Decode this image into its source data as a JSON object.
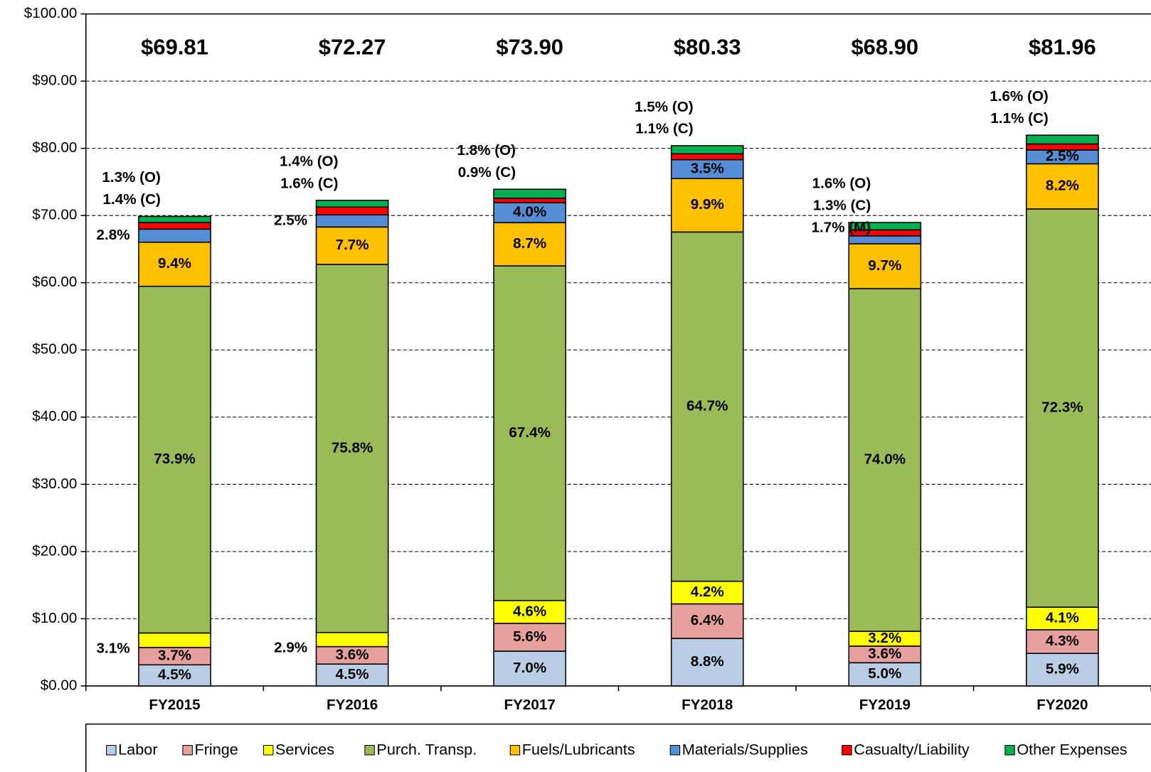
{
  "chart_data": {
    "type": "stacked_bar",
    "categories": [
      "FY2015",
      "FY2016",
      "FY2017",
      "FY2018",
      "FY2019",
      "FY2020"
    ],
    "totals": [
      69.81,
      72.27,
      73.9,
      80.33,
      68.9,
      81.96
    ],
    "total_labels": [
      "$69.81",
      "$72.27",
      "$73.90",
      "$80.33",
      "$68.90",
      "$81.96"
    ],
    "series": [
      {
        "name": "Labor",
        "color": "#b9cde5",
        "values": [
          3.14,
          3.25,
          5.17,
          7.07,
          3.45,
          4.84
        ],
        "share_labels": [
          "4.5%",
          "4.5%",
          "7.0%",
          "8.8%",
          "5.0%",
          "5.9%"
        ]
      },
      {
        "name": "Fringe",
        "color": "#e6a09e",
        "values": [
          2.58,
          2.6,
          4.14,
          5.14,
          2.48,
          3.52
        ],
        "share_labels": [
          "3.7%",
          "3.6%",
          "5.6%",
          "6.4%",
          "3.6%",
          "4.3%"
        ]
      },
      {
        "name": "Services",
        "color": "#ffff00",
        "values": [
          2.16,
          2.1,
          3.4,
          3.37,
          2.2,
          3.36
        ],
        "share_labels": [
          "3.1%",
          "2.9%",
          "4.6%",
          "4.2%",
          "3.2%",
          "4.1%"
        ]
      },
      {
        "name": "Purch. Transp.",
        "color": "#9bbb59",
        "values": [
          51.59,
          54.78,
          49.81,
          51.97,
          50.99,
          59.26
        ],
        "share_labels": [
          "73.9%",
          "75.8%",
          "67.4%",
          "64.7%",
          "74.0%",
          "72.3%"
        ]
      },
      {
        "name": "Fuels/Lubricants",
        "color": "#ffc000",
        "values": [
          6.56,
          5.56,
          6.43,
          7.95,
          6.68,
          6.72
        ],
        "share_labels": [
          "9.4%",
          "7.7%",
          "8.7%",
          "9.9%",
          "9.7%",
          "8.2%"
        ]
      },
      {
        "name": "Materials/Supplies",
        "color": "#558ed5",
        "values": [
          1.95,
          1.81,
          2.96,
          2.81,
          1.17,
          2.05
        ],
        "share_labels": [
          "2.8%",
          "2.5%",
          "4.0%",
          "3.5%",
          "1.7% (M)",
          "2.5%"
        ]
      },
      {
        "name": "Casualty/Liability",
        "color": "#ff0000",
        "values": [
          0.98,
          1.16,
          0.67,
          0.88,
          0.9,
          0.9
        ],
        "share_labels": [
          "1.4% (C)",
          "1.6% (C)",
          "0.9% (C)",
          "1.1% (C)",
          "1.3% (C)",
          "1.1% (C)"
        ]
      },
      {
        "name": "Other Expenses",
        "color": "#00b050",
        "values": [
          0.91,
          1.01,
          1.33,
          1.2,
          1.1,
          1.31
        ],
        "share_labels": [
          "1.3% (O)",
          "1.4% (O)",
          "1.8% (O)",
          "1.5% (O)",
          "1.6% (O)",
          "1.6% (O)"
        ]
      }
    ],
    "ylim": [
      0,
      100
    ],
    "yticks": [
      {
        "value": 0,
        "label": "$0.00"
      },
      {
        "value": 10,
        "label": "$10.00"
      },
      {
        "value": 20,
        "label": "$20.00"
      },
      {
        "value": 30,
        "label": "$30.00"
      },
      {
        "value": 40,
        "label": "$40.00"
      },
      {
        "value": 50,
        "label": "$50.00"
      },
      {
        "value": 60,
        "label": "$60.00"
      },
      {
        "value": 70,
        "label": "$70.00"
      },
      {
        "value": 80,
        "label": "$80.00"
      },
      {
        "value": 90,
        "label": "$90.00"
      },
      {
        "value": 100,
        "label": "$100.00"
      }
    ],
    "grid": true,
    "legend": "bottom"
  }
}
